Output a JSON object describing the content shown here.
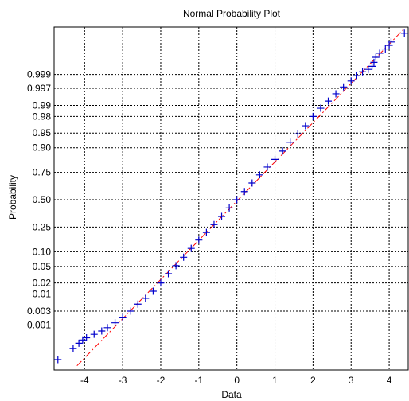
{
  "chart_data": {
    "type": "scatter",
    "title": "Normal Probability Plot",
    "xlabel": "Data",
    "ylabel": "Probability",
    "xlim": [
      -4.8,
      4.5
    ],
    "grid": true,
    "x_ticks": [
      -4,
      -3,
      -2,
      -1,
      0,
      1,
      2,
      3,
      4
    ],
    "y_ticks": [
      {
        "label": "0.999",
        "p": 0.999
      },
      {
        "label": "0.997",
        "p": 0.997
      },
      {
        "label": "0.99",
        "p": 0.99
      },
      {
        "label": "0.98",
        "p": 0.98
      },
      {
        "label": "0.95",
        "p": 0.95
      },
      {
        "label": "0.90",
        "p": 0.9
      },
      {
        "label": "0.75",
        "p": 0.75
      },
      {
        "label": "0.50",
        "p": 0.5
      },
      {
        "label": "0.25",
        "p": 0.25
      },
      {
        "label": "0.10",
        "p": 0.1
      },
      {
        "label": "0.05",
        "p": 0.05
      },
      {
        "label": "0.02",
        "p": 0.02
      },
      {
        "label": "0.01",
        "p": 0.01
      },
      {
        "label": "0.003",
        "p": 0.003
      },
      {
        "label": "0.001",
        "p": 0.001
      }
    ],
    "series": [
      {
        "marker": "+",
        "color": "#0000cc",
        "points": [
          {
            "x": -4.7,
            "p": 4e-05
          },
          {
            "x": -4.3,
            "p": 0.00012
          },
          {
            "x": -4.15,
            "p": 0.0002
          },
          {
            "x": -4.05,
            "p": 0.00027
          },
          {
            "x": -3.95,
            "p": 0.00033
          },
          {
            "x": -3.75,
            "p": 0.00045
          },
          {
            "x": -3.55,
            "p": 0.0006
          },
          {
            "x": -3.4,
            "p": 0.0008
          },
          {
            "x": -3.2,
            "p": 0.0012
          },
          {
            "x": -3.0,
            "p": 0.0018
          },
          {
            "x": -2.8,
            "p": 0.003
          },
          {
            "x": -2.6,
            "p": 0.005
          },
          {
            "x": -2.4,
            "p": 0.0075
          },
          {
            "x": -2.2,
            "p": 0.012
          },
          {
            "x": -2.0,
            "p": 0.02
          },
          {
            "x": -1.8,
            "p": 0.034
          },
          {
            "x": -1.6,
            "p": 0.052
          },
          {
            "x": -1.4,
            "p": 0.078
          },
          {
            "x": -1.2,
            "p": 0.115
          },
          {
            "x": -1.0,
            "p": 0.16
          },
          {
            "x": -0.8,
            "p": 0.21
          },
          {
            "x": -0.6,
            "p": 0.27
          },
          {
            "x": -0.4,
            "p": 0.34
          },
          {
            "x": -0.2,
            "p": 0.42
          },
          {
            "x": 0.0,
            "p": 0.5
          },
          {
            "x": 0.2,
            "p": 0.58
          },
          {
            "x": 0.4,
            "p": 0.66
          },
          {
            "x": 0.6,
            "p": 0.73
          },
          {
            "x": 0.8,
            "p": 0.79
          },
          {
            "x": 1.0,
            "p": 0.84
          },
          {
            "x": 1.2,
            "p": 0.885
          },
          {
            "x": 1.4,
            "p": 0.922
          },
          {
            "x": 1.6,
            "p": 0.948
          },
          {
            "x": 1.8,
            "p": 0.966
          },
          {
            "x": 2.0,
            "p": 0.98
          },
          {
            "x": 2.2,
            "p": 0.988
          },
          {
            "x": 2.4,
            "p": 0.9925
          },
          {
            "x": 2.6,
            "p": 0.9955
          },
          {
            "x": 2.8,
            "p": 0.9973
          },
          {
            "x": 3.0,
            "p": 0.9983
          },
          {
            "x": 3.15,
            "p": 0.9989
          },
          {
            "x": 3.3,
            "p": 0.9992
          },
          {
            "x": 3.45,
            "p": 0.99935
          },
          {
            "x": 3.55,
            "p": 0.9995
          },
          {
            "x": 3.6,
            "p": 0.99965
          },
          {
            "x": 3.65,
            "p": 0.99978
          },
          {
            "x": 3.75,
            "p": 0.99985
          },
          {
            "x": 3.9,
            "p": 0.9999
          },
          {
            "x": 4.0,
            "p": 0.99993
          },
          {
            "x": 4.05,
            "p": 0.99995
          },
          {
            "x": 4.4,
            "p": 0.99998
          }
        ]
      }
    ],
    "reference_line": {
      "style": "dash-dot",
      "color": "#ff0000",
      "x": [
        -4.2,
        4.4
      ],
      "p": [
        2.1e-05,
        0.999988
      ]
    }
  }
}
